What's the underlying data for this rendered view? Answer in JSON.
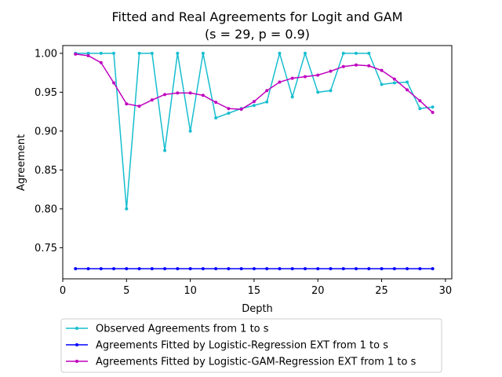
{
  "chart_data": {
    "type": "line",
    "title_line1": "Fitted and Real Agreements for Logit and GAM",
    "title_line2": "(s = 29, p = 0.9)",
    "xlabel": "Depth",
    "ylabel": "Agreement",
    "xlim": [
      0,
      30.5
    ],
    "ylim": [
      0.71,
      1.01
    ],
    "xticks": [
      0,
      5,
      10,
      15,
      20,
      25,
      30
    ],
    "yticks": [
      0.75,
      0.8,
      0.85,
      0.9,
      0.95,
      1.0
    ],
    "ytick_labels": [
      "0.75",
      "0.80",
      "0.85",
      "0.90",
      "0.95",
      "1.00"
    ],
    "legend_position": "bottom-center",
    "x": [
      1,
      2,
      3,
      4,
      5,
      6,
      7,
      8,
      9,
      10,
      11,
      12,
      13,
      14,
      15,
      16,
      17,
      18,
      19,
      20,
      21,
      22,
      23,
      24,
      25,
      26,
      27,
      28,
      29
    ],
    "series": [
      {
        "name": "Observed Agreements from 1 to s",
        "color": "#17becf",
        "values": [
          1.0,
          1.0,
          1.0,
          1.0,
          0.8,
          1.0,
          1.0,
          0.875,
          1.0,
          0.9,
          1.0,
          0.917,
          0.923,
          0.929,
          0.933,
          0.9375,
          1.0,
          0.944,
          1.0,
          0.95,
          0.952,
          1.0,
          1.0,
          1.0,
          0.96,
          0.962,
          0.963,
          0.929,
          0.931
        ]
      },
      {
        "name": "Agreements Fitted by Logistic-Regression EXT from 1 to s",
        "color": "#0000ff",
        "values": [
          0.723,
          0.723,
          0.723,
          0.723,
          0.723,
          0.723,
          0.723,
          0.723,
          0.723,
          0.723,
          0.723,
          0.723,
          0.723,
          0.723,
          0.723,
          0.723,
          0.723,
          0.723,
          0.723,
          0.723,
          0.723,
          0.723,
          0.723,
          0.723,
          0.723,
          0.723,
          0.723,
          0.723,
          0.723
        ]
      },
      {
        "name": "Agreements Fitted by Logistic-GAM-Regression EXT from 1 to s",
        "color": "#bf00bf",
        "values": [
          0.999,
          0.997,
          0.988,
          0.962,
          0.935,
          0.932,
          0.94,
          0.947,
          0.949,
          0.949,
          0.946,
          0.937,
          0.929,
          0.928,
          0.938,
          0.952,
          0.963,
          0.968,
          0.97,
          0.972,
          0.977,
          0.983,
          0.985,
          0.984,
          0.978,
          0.967,
          0.953,
          0.939,
          0.924
        ]
      }
    ]
  }
}
